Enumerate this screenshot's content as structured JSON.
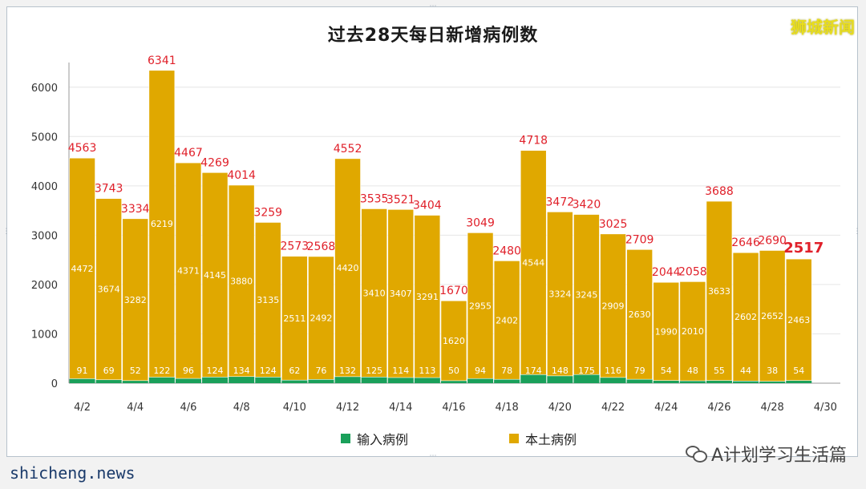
{
  "title": "过去28天每日新增病例数",
  "brand": "狮城新闻",
  "watermark": "A计划学习生活篇",
  "footer_text": "shicheng.news",
  "colors": {
    "local": "#e0a800",
    "imported": "#1aa05a",
    "total_label": "#e0202a",
    "grid": "#e6e6e6"
  },
  "legend": [
    {
      "label": "输入病例",
      "color": "#1aa05a"
    },
    {
      "label": "本土病例",
      "color": "#e0a800"
    }
  ],
  "chart_data": {
    "type": "bar",
    "stacked": true,
    "title": "过去28天每日新增病例数",
    "ylim": [
      0,
      6500
    ],
    "yticks": [
      0,
      1000,
      2000,
      3000,
      4000,
      5000,
      6000
    ],
    "x_tick_labels": [
      "4/2",
      "4/4",
      "4/6",
      "4/8",
      "4/10",
      "4/12",
      "4/14",
      "4/16",
      "4/18",
      "4/20",
      "4/22",
      "4/24",
      "4/26",
      "4/28",
      "4/30"
    ],
    "categories": [
      "4/2",
      "4/3",
      "4/4",
      "4/5",
      "4/6",
      "4/7",
      "4/8",
      "4/9",
      "4/10",
      "4/11",
      "4/12",
      "4/13",
      "4/14",
      "4/15",
      "4/16",
      "4/17",
      "4/18",
      "4/19",
      "4/20",
      "4/21",
      "4/22",
      "4/23",
      "4/24",
      "4/25",
      "4/26",
      "4/27",
      "4/28",
      "4/29"
    ],
    "series": [
      {
        "name": "输入病例",
        "values": [
          91,
          69,
          52,
          122,
          96,
          124,
          134,
          124,
          62,
          76,
          132,
          125,
          114,
          113,
          50,
          94,
          78,
          174,
          148,
          175,
          116,
          79,
          54,
          48,
          55,
          44,
          38,
          54
        ]
      },
      {
        "name": "本土病例",
        "values": [
          4472,
          3674,
          3282,
          6219,
          4371,
          4145,
          3880,
          3135,
          2511,
          2492,
          4420,
          3410,
          3407,
          3291,
          1620,
          2955,
          2402,
          4544,
          3324,
          3245,
          2909,
          2630,
          1990,
          2010,
          3633,
          2602,
          2652,
          2463
        ]
      }
    ],
    "totals": [
      4563,
      3743,
      3334,
      6341,
      4467,
      4269,
      4014,
      3259,
      2573,
      2568,
      4552,
      3535,
      3521,
      3404,
      1670,
      3049,
      2480,
      4718,
      3472,
      3420,
      3025,
      2709,
      2044,
      2058,
      3688,
      2646,
      2690,
      2517
    ],
    "grid": true,
    "legend_position": "bottom"
  }
}
